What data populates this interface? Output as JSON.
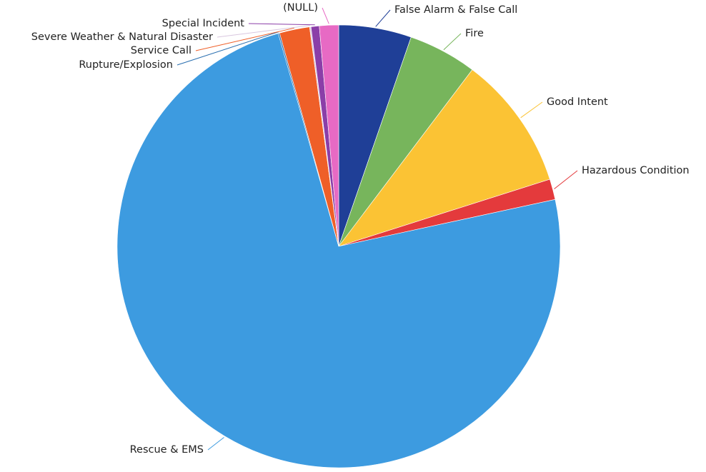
{
  "chart_data": {
    "type": "pie",
    "title": "",
    "start": "top, clockwise",
    "categories": [
      "False Alarm & False Call",
      "Fire",
      "Good Intent",
      "Hazardous Condition",
      "Rescue & EMS",
      "Rupture/Explosion",
      "Service Call",
      "Severe Weather & Natural Disaster",
      "Special Incident",
      "(NULL)"
    ],
    "values": [
      5.3,
      5.0,
      9.8,
      1.5,
      74.0,
      0.1,
      2.2,
      0.1,
      0.6,
      1.4
    ],
    "colors": [
      "#1f3f97",
      "#77b55c",
      "#fbc334",
      "#e43a3c",
      "#3d9be0",
      "#2a6fb0",
      "#ef5f28",
      "#d9c7df",
      "#8b3ea8",
      "#e76ac4"
    ]
  }
}
